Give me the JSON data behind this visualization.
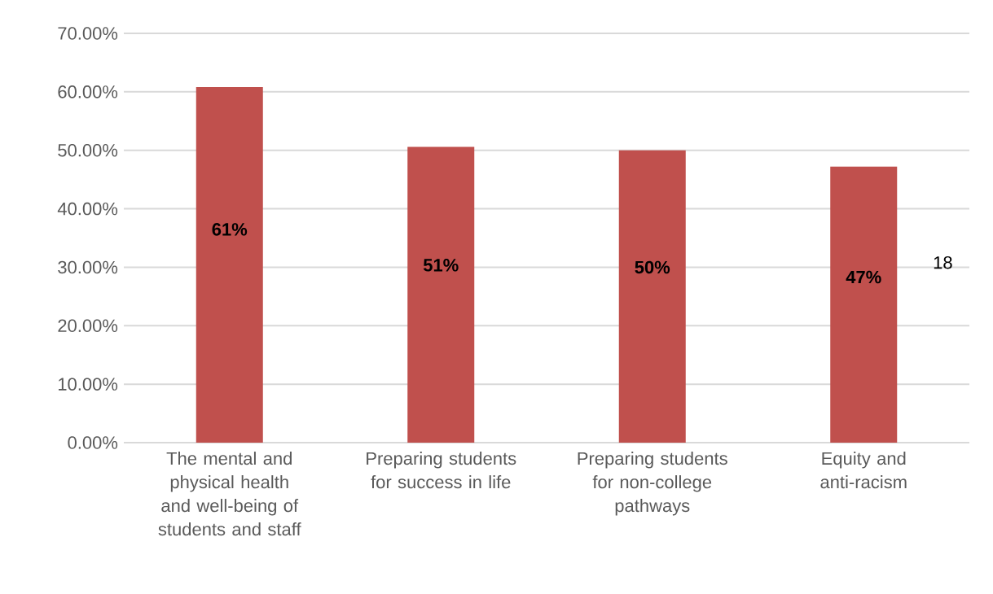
{
  "chart_data": {
    "type": "bar",
    "categories": [
      "The mental and physical health and well-being of students and staff",
      "Preparing students for success in life",
      "Preparing students for non-college pathways",
      "Equity and anti-racism"
    ],
    "values": [
      60.8,
      50.6,
      50.0,
      47.2
    ],
    "value_labels": [
      "61%",
      "51%",
      "50%",
      "47%"
    ],
    "color": "#c0504d",
    "ylim": [
      0,
      70
    ],
    "yticks": [
      {
        "value": 0,
        "label": "0.00%"
      },
      {
        "value": 10,
        "label": "10.00%"
      },
      {
        "value": 20,
        "label": "20.00%"
      },
      {
        "value": 30,
        "label": "30.00%"
      },
      {
        "value": 40,
        "label": "40.00%"
      },
      {
        "value": 50,
        "label": "50.00%"
      },
      {
        "value": 60,
        "label": "60.00%"
      },
      {
        "value": 70,
        "label": "70.00%"
      }
    ],
    "grid": "y",
    "annotations": [
      "18"
    ]
  }
}
